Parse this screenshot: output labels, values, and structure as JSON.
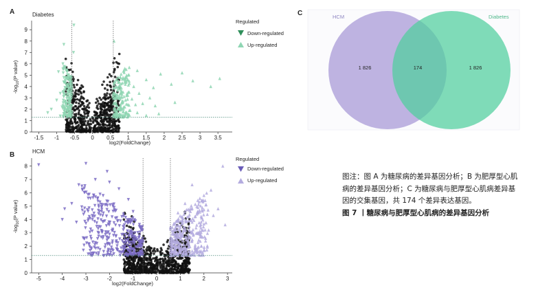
{
  "panels": {
    "A": {
      "label": "A",
      "title": "Diabetes"
    },
    "B": {
      "label": "B",
      "title": "HCM"
    },
    "C": {
      "label": "C"
    }
  },
  "volcano_common": {
    "xlabel": "log2(FoldChange)",
    "ylabel_main": "-log",
    "ylabel_sub": "10",
    "ylabel_tail": "(P value)",
    "legend_title": "Regulated",
    "legend_down": "Down-regulated",
    "legend_up": "Up-regulated"
  },
  "venn": {
    "left_name": "HCM",
    "right_name": "Diabetes",
    "left_only": "1 826",
    "overlap": "174",
    "right_only": "1 826",
    "left_color": "#b3a6dc",
    "right_color": "#4fcf9c"
  },
  "caption": {
    "note": "图注：图 A 为糖尿病的差异基因分析；B 为肥厚型心肌病的差异基因分析；C 为糖尿病与肥厚型心肌病差异基因的交集基因，共 174 个差异表达基因。",
    "title": "图 7 丨糖尿病与肥厚型心肌病的差异基因分析"
  },
  "colors": {
    "diabetes_sig": "#8fd6b3",
    "hcm_sig": "#7b6cc4",
    "hcm_sig_up": "#b4acdf",
    "nonsig": "#111111",
    "threshold": "#4a8a7a"
  },
  "chart_data": [
    {
      "type": "scatter",
      "title": "Diabetes",
      "xlabel": "log2(FoldChange)",
      "ylabel": "-log10(P value)",
      "xlim": [
        -1.7,
        3.9
      ],
      "ylim": [
        0,
        9.8
      ],
      "xticks": [
        -1.5,
        -1,
        -0.5,
        0,
        0.5,
        1,
        1.5,
        2,
        2.5,
        3,
        3.5
      ],
      "yticks": [
        0,
        1,
        2,
        3,
        4,
        5,
        6,
        7,
        8,
        9
      ],
      "thresholds": {
        "x": [
          -0.58,
          0.58
        ],
        "y": 1.3
      },
      "series": [
        {
          "name": "Down-regulated",
          "marker": "triangle-down",
          "points": [
            [
              -0.52,
              9.4
            ],
            [
              -0.8,
              7.7
            ],
            [
              -0.53,
              7.0
            ],
            [
              -0.95,
              5.3
            ],
            [
              -0.7,
              4.8
            ],
            [
              -0.62,
              4.4
            ],
            [
              -0.9,
              3.4
            ],
            [
              -0.6,
              3.6
            ],
            [
              -1.0,
              2.8
            ],
            [
              -0.85,
              2.2
            ],
            [
              -0.65,
              2.5
            ],
            [
              -1.15,
              2.0
            ],
            [
              -0.7,
              1.9
            ],
            [
              -0.8,
              1.6
            ],
            [
              -1.25,
              1.7
            ],
            [
              -0.6,
              2.1
            ],
            [
              -0.72,
              1.45
            ],
            [
              -0.9,
              1.4
            ]
          ]
        },
        {
          "name": "Up-regulated",
          "marker": "triangle-up",
          "points": [
            [
              0.6,
              8.0
            ],
            [
              1.25,
              5.4
            ],
            [
              1.9,
              5.1
            ],
            [
              2.5,
              5.2
            ],
            [
              1.0,
              5.0
            ],
            [
              1.5,
              4.6
            ],
            [
              0.9,
              4.4
            ],
            [
              1.15,
              4.0
            ],
            [
              2.2,
              4.2
            ],
            [
              1.7,
              3.9
            ],
            [
              2.8,
              4.5
            ],
            [
              3.3,
              4.0
            ],
            [
              3.55,
              4.7
            ],
            [
              2.3,
              2.6
            ],
            [
              0.75,
              3.8
            ],
            [
              0.8,
              3.5
            ],
            [
              1.3,
              3.4
            ],
            [
              0.95,
              3.2
            ],
            [
              1.6,
              3.0
            ],
            [
              1.1,
              2.9
            ],
            [
              0.7,
              3.0
            ],
            [
              0.85,
              2.7
            ],
            [
              1.4,
              2.5
            ],
            [
              0.65,
              2.6
            ],
            [
              1.2,
              2.4
            ],
            [
              0.9,
              2.2
            ],
            [
              1.75,
              2.3
            ],
            [
              0.78,
              2.0
            ],
            [
              1.05,
              1.9
            ],
            [
              0.68,
              1.8
            ],
            [
              1.25,
              1.7
            ],
            [
              0.95,
              1.6
            ],
            [
              0.72,
              1.5
            ],
            [
              1.5,
              1.45
            ],
            [
              1.85,
              1.6
            ]
          ]
        }
      ],
      "legend": "right"
    },
    {
      "type": "scatter",
      "title": "HCM",
      "xlabel": "log2(FoldChange)",
      "ylabel": "-log10(P value)",
      "xlim": [
        -5.3,
        3.2
      ],
      "ylim": [
        0,
        8.6
      ],
      "xticks": [
        -5,
        -4,
        -3,
        -2,
        -1,
        0,
        1,
        2,
        3
      ],
      "yticks": [
        0,
        1,
        2,
        3,
        4,
        5,
        6,
        7,
        8
      ],
      "thresholds": {
        "x": [
          -0.58,
          0.58
        ],
        "y": 1.3
      },
      "series": [
        {
          "name": "Down-regulated",
          "marker": "triangle-down",
          "points": [
            [
              -5.0,
              8.1
            ],
            [
              -3.0,
              8.2
            ],
            [
              -2.1,
              7.6
            ],
            [
              -2.6,
              7.0
            ],
            [
              -3.3,
              6.6
            ],
            [
              -2.0,
              6.8
            ],
            [
              -1.6,
              6.3
            ],
            [
              -2.9,
              5.6
            ],
            [
              -3.6,
              5.2
            ],
            [
              -2.4,
              5.9
            ],
            [
              -1.2,
              5.5
            ],
            [
              -3.9,
              4.8
            ],
            [
              -3.1,
              4.4
            ],
            [
              -2.7,
              4.2
            ],
            [
              -1.8,
              4.9
            ],
            [
              -1.0,
              4.6
            ],
            [
              -4.0,
              4.0
            ],
            [
              -3.4,
              3.8
            ],
            [
              -2.2,
              3.9
            ],
            [
              -0.9,
              3.9
            ]
          ]
        },
        {
          "name": "Up-regulated",
          "marker": "triangle-up",
          "points": [
            [
              2.8,
              8.0
            ],
            [
              1.5,
              6.6
            ],
            [
              2.3,
              6.2
            ],
            [
              2.0,
              5.8
            ],
            [
              1.9,
              5.4
            ],
            [
              1.2,
              5.2
            ],
            [
              2.6,
              4.8
            ],
            [
              2.4,
              4.3
            ],
            [
              0.9,
              4.5
            ],
            [
              1.7,
              4.4
            ],
            [
              1.1,
              3.9
            ],
            [
              2.9,
              3.6
            ],
            [
              0.8,
              3.3
            ],
            [
              2.2,
              3.2
            ]
          ]
        }
      ],
      "legend": "right"
    }
  ]
}
